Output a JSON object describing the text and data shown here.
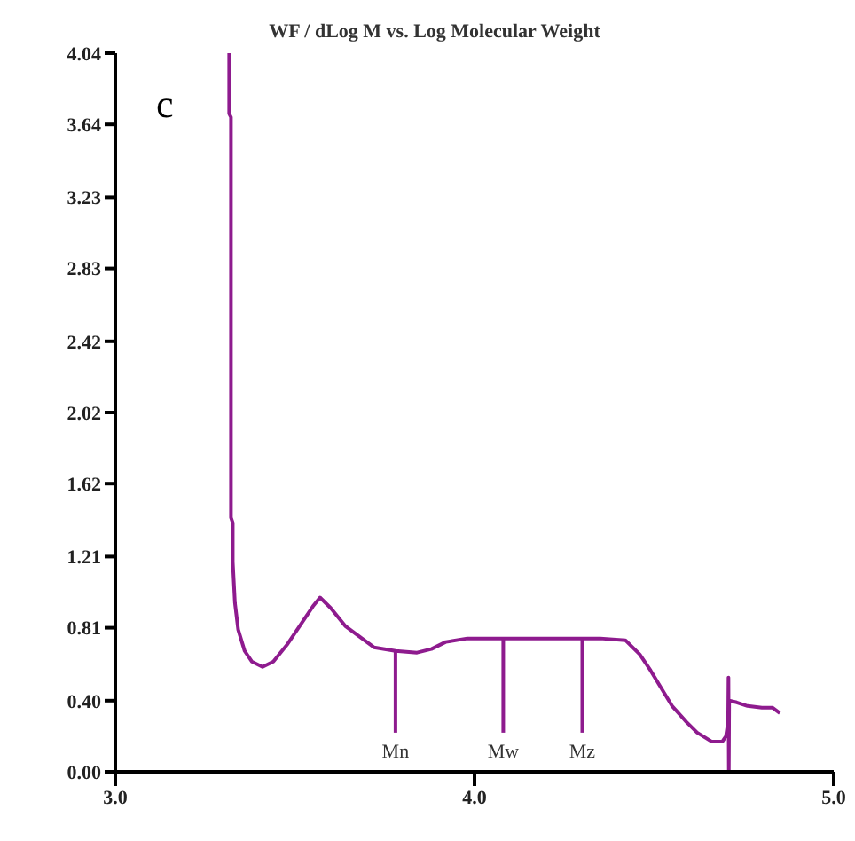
{
  "chart_data": {
    "type": "line",
    "title": "WF / dLog M vs. Log Molecular Weight",
    "annotations": [
      "c",
      {
        "text": "Mn",
        "x": 3.78,
        "y": 0.22
      },
      {
        "text": "Mw",
        "x": 4.08,
        "y": 0.22
      },
      {
        "text": "Mz",
        "x": 4.3,
        "y": 0.22
      }
    ],
    "series": [
      {
        "color": "#8e1b8e",
        "x": [
          3.317,
          3.317,
          3.322,
          3.322,
          3.327,
          3.327,
          3.333,
          3.342,
          3.36,
          3.38,
          3.41,
          3.44,
          3.48,
          3.52,
          3.55,
          3.57,
          3.6,
          3.64,
          3.68,
          3.72,
          3.78,
          3.84,
          3.88,
          3.92,
          3.98,
          4.06,
          4.15,
          4.25,
          4.35,
          4.42,
          4.46,
          4.49,
          4.52,
          4.55,
          4.59,
          4.62,
          4.66,
          4.69,
          4.7,
          4.706,
          4.707,
          4.708,
          4.709,
          4.73,
          4.76,
          4.8,
          4.83,
          4.85
        ],
        "values": [
          4.04,
          3.7,
          3.68,
          1.43,
          1.4,
          1.18,
          0.95,
          0.8,
          0.68,
          0.62,
          0.59,
          0.62,
          0.72,
          0.84,
          0.93,
          0.98,
          0.92,
          0.82,
          0.76,
          0.7,
          0.68,
          0.67,
          0.69,
          0.73,
          0.75,
          0.75,
          0.75,
          0.75,
          0.75,
          0.74,
          0.66,
          0.57,
          0.47,
          0.37,
          0.28,
          0.22,
          0.17,
          0.17,
          0.2,
          0.28,
          0.53,
          0,
          0.4,
          0.39,
          0.37,
          0.36,
          0.36,
          0.33
        ]
      },
      {
        "color": "#8e1b8e",
        "x": [
          3.78,
          3.78
        ],
        "values": [
          0.22,
          0.68
        ]
      },
      {
        "color": "#8e1b8e",
        "x": [
          4.08,
          4.08
        ],
        "values": [
          0.22,
          0.75
        ]
      },
      {
        "color": "#8e1b8e",
        "x": [
          4.3,
          4.3
        ],
        "values": [
          0.22,
          0.75
        ]
      }
    ],
    "xlim": [
      3,
      5
    ],
    "xticks": [
      {
        "value": 3,
        "label": "3.0"
      },
      {
        "value": 4,
        "label": "4.0"
      },
      {
        "value": 5,
        "label": "5.0"
      }
    ],
    "ylim": [
      0,
      4.04
    ],
    "yticks": [
      {
        "value": 0,
        "label": "0.00"
      },
      {
        "value": 0.4,
        "label": "0.40"
      },
      0.81,
      1.21,
      1.62,
      2.02,
      2.42,
      2.83,
      3.23,
      3.64,
      4.04
    ],
    "grid": false,
    "legend": false,
    "marker": "none",
    "line_style": "solid"
  }
}
